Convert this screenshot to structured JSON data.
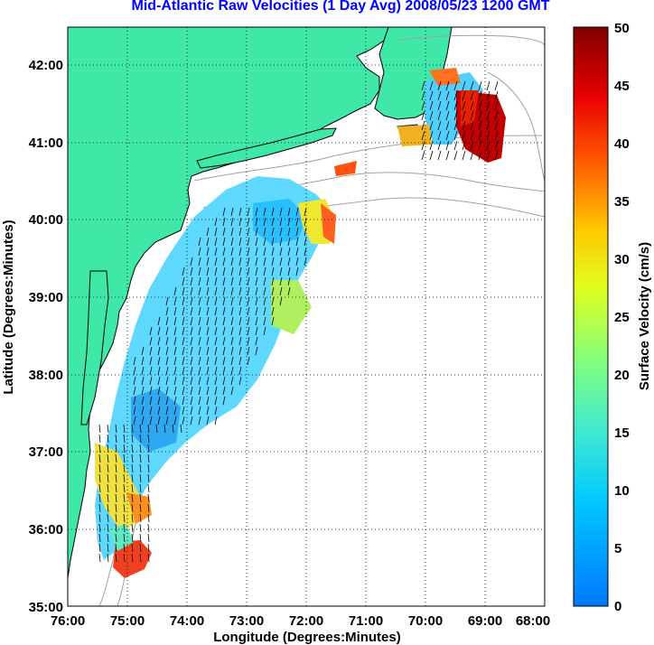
{
  "title": "Mid-Atlantic Raw Velocities (1 Day Avg) 2008/05/23 1200 GMT",
  "map": {
    "xlabel": "Longitude (Degrees:Minutes)",
    "ylabel": "Latitude (Degrees:Minutes)",
    "lon_range": [
      -76,
      -68
    ],
    "lat_range": [
      35,
      42.5
    ],
    "lon_ticks": [
      "76:00",
      "75:00",
      "74:00",
      "73:00",
      "72:00",
      "71:00",
      "70:00",
      "69:00",
      "68:00"
    ],
    "lat_ticks": [
      "35:00",
      "36:00",
      "37:00",
      "38:00",
      "39:00",
      "40:00",
      "41:00",
      "42:00"
    ],
    "grid": true,
    "land_color": "#40e8a8",
    "coast_line_color": "#000000",
    "bathymetry_color": "#a0a0a0"
  },
  "colorbar": {
    "label": "Surface Velocity (cm/s)",
    "min": 0,
    "max": 50,
    "ticks": [
      "0",
      "5",
      "10",
      "15",
      "20",
      "25",
      "30",
      "35",
      "40",
      "45",
      "50"
    ]
  }
}
